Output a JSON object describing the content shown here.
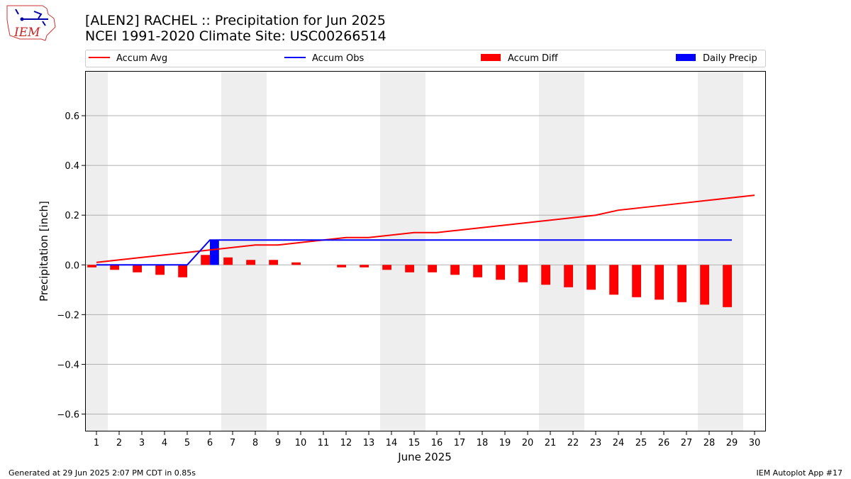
{
  "header": {
    "title_line1": "[ALEN2] RACHEL :: Precipitation for Jun 2025",
    "title_line2": "NCEI 1991-2020 Climate Site: USC00266514",
    "logo_text": "IEM"
  },
  "footer": {
    "left": "Generated at 29 Jun 2025 2:07 PM CDT in 0.85s",
    "right": "IEM Autoplot App #17"
  },
  "chart_data": {
    "type": "bar",
    "xlabel": "June 2025",
    "ylabel": "Precipitation [inch]",
    "xlim": [
      0.5,
      30.5
    ],
    "ylim": [
      -0.67,
      0.78
    ],
    "grid": "y",
    "legend_placement": "top",
    "x_ticks": [
      1,
      2,
      3,
      4,
      5,
      6,
      7,
      8,
      9,
      10,
      11,
      12,
      13,
      14,
      15,
      16,
      17,
      18,
      19,
      20,
      21,
      22,
      23,
      24,
      25,
      26,
      27,
      28,
      29,
      30
    ],
    "y_ticks": [
      -0.6,
      -0.4,
      -0.2,
      0.0,
      0.2,
      0.4,
      0.6
    ],
    "y_tick_labels": [
      "−0.6",
      "−0.4",
      "−0.2",
      "0.0",
      "0.2",
      "0.4",
      "0.6"
    ],
    "weekend_shading": [
      [
        1,
        1
      ],
      [
        7,
        8
      ],
      [
        14,
        15
      ],
      [
        21,
        22
      ],
      [
        28,
        29
      ]
    ],
    "series": [
      {
        "name": "Accum Avg",
        "kind": "line",
        "color": "#ff0000",
        "x": [
          1,
          2,
          3,
          4,
          5,
          6,
          7,
          8,
          9,
          10,
          11,
          12,
          13,
          14,
          15,
          16,
          17,
          18,
          19,
          20,
          21,
          22,
          23,
          24,
          25,
          26,
          27,
          28,
          29,
          30
        ],
        "values": [
          0.01,
          0.02,
          0.03,
          0.04,
          0.05,
          0.06,
          0.07,
          0.08,
          0.08,
          0.09,
          0.1,
          0.11,
          0.11,
          0.12,
          0.13,
          0.13,
          0.14,
          0.15,
          0.16,
          0.17,
          0.18,
          0.19,
          0.2,
          0.22,
          0.23,
          0.24,
          0.25,
          0.26,
          0.27,
          0.28
        ]
      },
      {
        "name": "Accum Obs",
        "kind": "line",
        "color": "#0000ff",
        "x": [
          1,
          2,
          3,
          4,
          5,
          6,
          7,
          8,
          9,
          10,
          11,
          12,
          13,
          14,
          15,
          16,
          17,
          18,
          19,
          20,
          21,
          22,
          23,
          24,
          25,
          26,
          27,
          28,
          29
        ],
        "values": [
          0,
          0,
          0,
          0,
          0,
          0.1,
          0.1,
          0.1,
          0.1,
          0.1,
          0.1,
          0.1,
          0.1,
          0.1,
          0.1,
          0.1,
          0.1,
          0.1,
          0.1,
          0.1,
          0.1,
          0.1,
          0.1,
          0.1,
          0.1,
          0.1,
          0.1,
          0.1,
          0.1
        ]
      },
      {
        "name": "Accum Diff",
        "kind": "bar",
        "color": "#ff0000",
        "x": [
          1,
          2,
          3,
          4,
          5,
          6,
          7,
          8,
          9,
          10,
          11,
          12,
          13,
          14,
          15,
          16,
          17,
          18,
          19,
          20,
          21,
          22,
          23,
          24,
          25,
          26,
          27,
          28,
          29
        ],
        "values": [
          -0.01,
          -0.02,
          -0.03,
          -0.04,
          -0.05,
          0.04,
          0.03,
          0.02,
          0.02,
          0.01,
          0,
          -0.01,
          -0.01,
          -0.02,
          -0.03,
          -0.03,
          -0.04,
          -0.05,
          -0.06,
          -0.07,
          -0.08,
          -0.09,
          -0.1,
          -0.12,
          -0.13,
          -0.14,
          -0.15,
          -0.16,
          -0.17
        ]
      },
      {
        "name": "Daily Precip",
        "kind": "bar",
        "color": "#0000ff",
        "x": [
          6
        ],
        "values": [
          0.1
        ]
      }
    ]
  }
}
